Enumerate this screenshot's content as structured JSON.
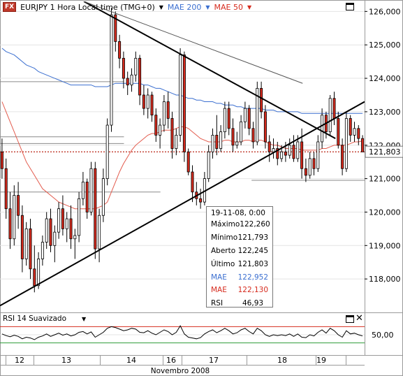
{
  "header": {
    "symbol": "EURJPY",
    "fx_badge": "FX",
    "title": "EURJPY 1 Hora Local time (TMG+0)",
    "ma200_label": "MAE 200",
    "ma50_label": "MAE 50"
  },
  "legend": {
    "date": "19-11-08, 0:00",
    "rows": [
      {
        "label": "Máximo",
        "value": "122,260",
        "color": "#000000"
      },
      {
        "label": "Mínimo",
        "value": "121,793",
        "color": "#000000"
      },
      {
        "label": "Aberto",
        "value": "122,245",
        "color": "#000000"
      },
      {
        "label": "Último",
        "value": "121,803",
        "color": "#000000"
      },
      {
        "label": "MAE",
        "value": "122,952",
        "color": "#3b6fd0"
      },
      {
        "label": "MAE",
        "value": "122,130",
        "color": "#d62b1e"
      },
      {
        "label": "RSI",
        "value": "46,93",
        "color": "#000000"
      }
    ]
  },
  "rsi_panel": {
    "label": "RSI 14 Suavizado",
    "level_label": "50,00"
  },
  "colors": {
    "up": "#ffffff",
    "down": "#d62b1e",
    "candle_outline": "#000000",
    "ma200": "#3b6fd0",
    "ma50": "#e35b4d",
    "price_line": "#c0392b",
    "rsi_line": "#000000",
    "rsi_upper": "#d62b1e",
    "rsi_lower": "#2e9d3a"
  },
  "chart_data": {
    "type": "candlestick",
    "title": "EURJPY 1 Hora Local time (TMG+0)",
    "xlabel": "Novembro 2008",
    "y_ticks": [
      "126,000",
      "125,000",
      "124,000",
      "123,000",
      "122,000",
      "121,000",
      "120,000",
      "119,000",
      "118,000"
    ],
    "ylim": [
      117.0,
      126.3
    ],
    "x_ticks": [
      "12",
      "13",
      "14",
      "16",
      "17",
      "18",
      "19"
    ],
    "last_price": "121,803",
    "candles": [
      {
        "o": 121.8,
        "h": 122.2,
        "l": 121.0,
        "c": 121.3
      },
      {
        "o": 121.3,
        "h": 121.6,
        "l": 119.8,
        "c": 120.1
      },
      {
        "o": 120.1,
        "h": 120.6,
        "l": 118.9,
        "c": 119.2
      },
      {
        "o": 119.2,
        "h": 120.8,
        "l": 119.0,
        "c": 120.5
      },
      {
        "o": 120.5,
        "h": 120.9,
        "l": 119.5,
        "c": 119.9
      },
      {
        "o": 119.9,
        "h": 120.2,
        "l": 118.2,
        "c": 118.6
      },
      {
        "o": 118.6,
        "h": 119.7,
        "l": 118.4,
        "c": 119.5
      },
      {
        "o": 119.5,
        "h": 119.8,
        "l": 118.0,
        "c": 118.3
      },
      {
        "o": 118.3,
        "h": 119.0,
        "l": 117.6,
        "c": 117.8
      },
      {
        "o": 117.8,
        "h": 118.8,
        "l": 117.7,
        "c": 118.6
      },
      {
        "o": 118.6,
        "h": 119.3,
        "l": 118.4,
        "c": 119.1
      },
      {
        "o": 119.1,
        "h": 120.0,
        "l": 118.9,
        "c": 119.8
      },
      {
        "o": 119.8,
        "h": 120.1,
        "l": 118.8,
        "c": 119.0
      },
      {
        "o": 119.0,
        "h": 119.6,
        "l": 118.5,
        "c": 119.4
      },
      {
        "o": 119.4,
        "h": 120.3,
        "l": 119.2,
        "c": 120.1
      },
      {
        "o": 120.1,
        "h": 120.5,
        "l": 119.3,
        "c": 119.5
      },
      {
        "o": 119.5,
        "h": 120.0,
        "l": 119.1,
        "c": 119.8
      },
      {
        "o": 119.8,
        "h": 120.2,
        "l": 118.9,
        "c": 119.2
      },
      {
        "o": 119.2,
        "h": 119.5,
        "l": 118.6,
        "c": 119.3
      },
      {
        "o": 119.3,
        "h": 120.6,
        "l": 119.1,
        "c": 120.4
      },
      {
        "o": 120.4,
        "h": 121.2,
        "l": 120.2,
        "c": 120.9
      },
      {
        "o": 120.9,
        "h": 121.0,
        "l": 119.8,
        "c": 120.0
      },
      {
        "o": 120.0,
        "h": 121.5,
        "l": 119.9,
        "c": 121.3
      },
      {
        "o": 121.3,
        "h": 121.5,
        "l": 118.6,
        "c": 118.9
      },
      {
        "o": 118.9,
        "h": 120.1,
        "l": 118.5,
        "c": 119.9
      },
      {
        "o": 119.9,
        "h": 121.3,
        "l": 119.7,
        "c": 121.0
      },
      {
        "o": 121.0,
        "h": 122.8,
        "l": 120.8,
        "c": 122.6
      },
      {
        "o": 122.6,
        "h": 126.1,
        "l": 122.4,
        "c": 125.9
      },
      {
        "o": 125.9,
        "h": 126.0,
        "l": 124.8,
        "c": 125.1
      },
      {
        "o": 125.1,
        "h": 125.3,
        "l": 124.3,
        "c": 124.6
      },
      {
        "o": 124.6,
        "h": 124.8,
        "l": 123.7,
        "c": 124.0
      },
      {
        "o": 124.0,
        "h": 124.2,
        "l": 123.5,
        "c": 123.8
      },
      {
        "o": 123.8,
        "h": 124.3,
        "l": 123.6,
        "c": 124.1
      },
      {
        "o": 124.1,
        "h": 124.8,
        "l": 123.9,
        "c": 124.6
      },
      {
        "o": 124.6,
        "h": 124.7,
        "l": 123.2,
        "c": 123.5
      },
      {
        "o": 123.5,
        "h": 123.8,
        "l": 122.9,
        "c": 123.1
      },
      {
        "o": 123.1,
        "h": 123.7,
        "l": 122.8,
        "c": 123.5
      },
      {
        "o": 123.5,
        "h": 123.6,
        "l": 122.7,
        "c": 122.9
      },
      {
        "o": 122.9,
        "h": 123.1,
        "l": 122.1,
        "c": 122.3
      },
      {
        "o": 122.3,
        "h": 122.8,
        "l": 121.9,
        "c": 122.6
      },
      {
        "o": 122.6,
        "h": 123.5,
        "l": 122.4,
        "c": 123.3
      },
      {
        "o": 123.3,
        "h": 123.6,
        "l": 122.5,
        "c": 122.8
      },
      {
        "o": 122.8,
        "h": 123.0,
        "l": 121.6,
        "c": 121.9
      },
      {
        "o": 121.9,
        "h": 122.5,
        "l": 121.7,
        "c": 122.3
      },
      {
        "o": 122.3,
        "h": 124.9,
        "l": 122.1,
        "c": 124.7
      },
      {
        "o": 124.7,
        "h": 124.8,
        "l": 121.5,
        "c": 121.8
      },
      {
        "o": 121.8,
        "h": 121.9,
        "l": 121.1,
        "c": 121.2
      },
      {
        "o": 121.2,
        "h": 121.4,
        "l": 120.3,
        "c": 120.6
      },
      {
        "o": 120.6,
        "h": 120.9,
        "l": 120.2,
        "c": 120.4
      },
      {
        "o": 120.4,
        "h": 120.7,
        "l": 120.1,
        "c": 120.3
      },
      {
        "o": 120.3,
        "h": 121.2,
        "l": 120.2,
        "c": 121.0
      },
      {
        "o": 121.0,
        "h": 122.0,
        "l": 120.9,
        "c": 121.8
      },
      {
        "o": 121.8,
        "h": 122.5,
        "l": 121.6,
        "c": 122.3
      },
      {
        "o": 122.3,
        "h": 122.9,
        "l": 121.7,
        "c": 121.9
      },
      {
        "o": 121.9,
        "h": 122.6,
        "l": 121.8,
        "c": 122.4
      },
      {
        "o": 122.4,
        "h": 123.3,
        "l": 122.2,
        "c": 123.1
      },
      {
        "o": 123.1,
        "h": 123.3,
        "l": 122.3,
        "c": 122.5
      },
      {
        "o": 122.5,
        "h": 122.8,
        "l": 121.8,
        "c": 122.0
      },
      {
        "o": 122.0,
        "h": 122.4,
        "l": 121.9,
        "c": 122.1
      },
      {
        "o": 122.1,
        "h": 122.9,
        "l": 122.0,
        "c": 122.7
      },
      {
        "o": 122.7,
        "h": 123.3,
        "l": 122.5,
        "c": 123.1
      },
      {
        "o": 123.1,
        "h": 123.2,
        "l": 122.3,
        "c": 122.5
      },
      {
        "o": 122.5,
        "h": 122.7,
        "l": 121.9,
        "c": 122.1
      },
      {
        "o": 122.1,
        "h": 123.9,
        "l": 122.0,
        "c": 123.7
      },
      {
        "o": 123.7,
        "h": 123.9,
        "l": 122.8,
        "c": 123.0
      },
      {
        "o": 123.0,
        "h": 123.2,
        "l": 121.9,
        "c": 122.1
      },
      {
        "o": 122.1,
        "h": 122.3,
        "l": 121.5,
        "c": 121.8
      },
      {
        "o": 121.8,
        "h": 122.2,
        "l": 121.6,
        "c": 121.9
      },
      {
        "o": 121.9,
        "h": 122.1,
        "l": 121.4,
        "c": 121.6
      },
      {
        "o": 121.6,
        "h": 122.0,
        "l": 121.5,
        "c": 121.8
      },
      {
        "o": 121.8,
        "h": 122.1,
        "l": 121.5,
        "c": 121.7
      },
      {
        "o": 121.7,
        "h": 122.2,
        "l": 121.6,
        "c": 122.0
      },
      {
        "o": 122.0,
        "h": 122.3,
        "l": 121.5,
        "c": 121.6
      },
      {
        "o": 121.6,
        "h": 122.3,
        "l": 121.5,
        "c": 122.1
      },
      {
        "o": 122.1,
        "h": 122.5,
        "l": 121.0,
        "c": 121.3
      },
      {
        "o": 121.3,
        "h": 121.6,
        "l": 120.9,
        "c": 121.1
      },
      {
        "o": 121.1,
        "h": 121.8,
        "l": 121.0,
        "c": 121.6
      },
      {
        "o": 121.6,
        "h": 121.8,
        "l": 121.1,
        "c": 121.3
      },
      {
        "o": 121.3,
        "h": 122.3,
        "l": 121.2,
        "c": 122.1
      },
      {
        "o": 122.1,
        "h": 123.1,
        "l": 121.9,
        "c": 122.9
      },
      {
        "o": 122.9,
        "h": 123.0,
        "l": 122.2,
        "c": 122.4
      },
      {
        "o": 122.4,
        "h": 123.5,
        "l": 122.3,
        "c": 123.4
      },
      {
        "o": 123.4,
        "h": 123.6,
        "l": 122.6,
        "c": 122.8
      },
      {
        "o": 122.8,
        "h": 123.0,
        "l": 121.9,
        "c": 122.0
      },
      {
        "o": 122.0,
        "h": 122.2,
        "l": 121.1,
        "c": 121.3
      },
      {
        "o": 121.3,
        "h": 123.0,
        "l": 121.2,
        "c": 122.8
      },
      {
        "o": 122.8,
        "h": 122.9,
        "l": 122.1,
        "c": 122.3
      },
      {
        "o": 122.3,
        "h": 122.7,
        "l": 122.1,
        "c": 122.5
      },
      {
        "o": 122.5,
        "h": 122.6,
        "l": 122.0,
        "c": 122.2
      },
      {
        "o": 122.2,
        "h": 122.3,
        "l": 121.8,
        "c": 121.8
      }
    ],
    "ma200": [
      124.9,
      124.8,
      124.75,
      124.7,
      124.6,
      124.5,
      124.4,
      124.35,
      124.3,
      124.2,
      124.15,
      124.1,
      124.05,
      124.0,
      123.95,
      123.9,
      123.85,
      123.8,
      123.8,
      123.8,
      123.8,
      123.8,
      123.8,
      123.75,
      123.75,
      123.75,
      123.75,
      123.8,
      123.85,
      123.85,
      123.85,
      123.85,
      123.85,
      123.85,
      123.85,
      123.8,
      123.8,
      123.75,
      123.7,
      123.7,
      123.65,
      123.6,
      123.55,
      123.5,
      123.5,
      123.45,
      123.4,
      123.4,
      123.35,
      123.35,
      123.3,
      123.3,
      123.3,
      123.25,
      123.25,
      123.2,
      123.2,
      123.2,
      123.15,
      123.15,
      123.1,
      123.1,
      123.1,
      123.1,
      123.1,
      123.05,
      123.05,
      123.05,
      123.0,
      123.0,
      123.0,
      123.0,
      123.0,
      123.0,
      122.95,
      122.95,
      122.95,
      122.95,
      122.95,
      122.95,
      122.95,
      122.95,
      122.95,
      122.95,
      122.95,
      122.95,
      122.95,
      122.95,
      122.95,
      122.95
    ],
    "ma50": [
      123.3,
      123.0,
      122.7,
      122.4,
      122.1,
      121.8,
      121.5,
      121.3,
      121.1,
      120.9,
      120.7,
      120.6,
      120.5,
      120.4,
      120.3,
      120.25,
      120.2,
      120.15,
      120.1,
      120.1,
      120.1,
      120.1,
      120.1,
      120.1,
      120.15,
      120.2,
      120.3,
      120.6,
      120.9,
      121.2,
      121.45,
      121.65,
      121.85,
      122.0,
      122.1,
      122.2,
      122.3,
      122.35,
      122.35,
      122.4,
      122.45,
      122.45,
      122.45,
      122.5,
      122.55,
      122.55,
      122.5,
      122.4,
      122.3,
      122.2,
      122.15,
      122.1,
      122.1,
      122.1,
      122.1,
      122.15,
      122.15,
      122.1,
      122.1,
      122.1,
      122.15,
      122.15,
      122.1,
      122.15,
      122.15,
      122.1,
      122.05,
      122.0,
      122.0,
      121.95,
      121.9,
      121.9,
      121.9,
      121.9,
      121.85,
      121.85,
      121.85,
      121.85,
      121.85,
      121.9,
      121.9,
      121.95,
      122.0,
      122.0,
      122.0,
      122.0,
      122.05,
      122.1,
      122.1,
      122.13
    ],
    "horizontal_levels": [
      {
        "y": 123.9,
        "x_from": 0,
        "x_to": 0.34
      },
      {
        "y": 122.25,
        "x_from": 0,
        "x_to": 0.34
      },
      {
        "y": 122.05,
        "x_from": 0,
        "x_to": 0.34
      },
      {
        "y": 120.6,
        "x_from": 0,
        "x_to": 0.44
      },
      {
        "y": 121.8,
        "x_from": 0,
        "x_to": 1.0,
        "dashed": true
      },
      {
        "y": 120.95,
        "x_from": 0.69,
        "x_to": 1.0
      }
    ],
    "trendlines": [
      {
        "x1": 0.23,
        "y1": 126.3,
        "x2": 0.92,
        "y2": 122.2
      },
      {
        "x1": 0.0,
        "y1": 117.2,
        "x2": 1.0,
        "y2": 123.3
      },
      {
        "x1": 0.23,
        "y1": 126.3,
        "x2": 0.83,
        "y2": 123.85,
        "thin": true
      }
    ],
    "rsi": [
      52,
      48,
      45,
      49,
      46,
      40,
      44,
      42,
      38,
      44,
      47,
      52,
      46,
      50,
      54,
      49,
      52,
      47,
      50,
      56,
      58,
      52,
      57,
      44,
      50,
      56,
      66,
      70,
      68,
      64,
      60,
      62,
      66,
      64,
      56,
      55,
      60,
      54,
      50,
      56,
      62,
      58,
      50,
      56,
      72,
      52,
      44,
      42,
      40,
      43,
      52,
      58,
      62,
      55,
      60,
      66,
      60,
      52,
      55,
      62,
      66,
      58,
      52,
      66,
      60,
      50,
      46,
      50,
      48,
      50,
      48,
      52,
      46,
      52,
      44,
      43,
      50,
      47,
      56,
      62,
      54,
      66,
      60,
      50,
      44,
      60,
      52,
      54,
      50,
      47
    ],
    "rsi_ylim": [
      0,
      100
    ],
    "rsi_levels": {
      "upper": 70,
      "mid": 50,
      "lower": 30
    }
  }
}
